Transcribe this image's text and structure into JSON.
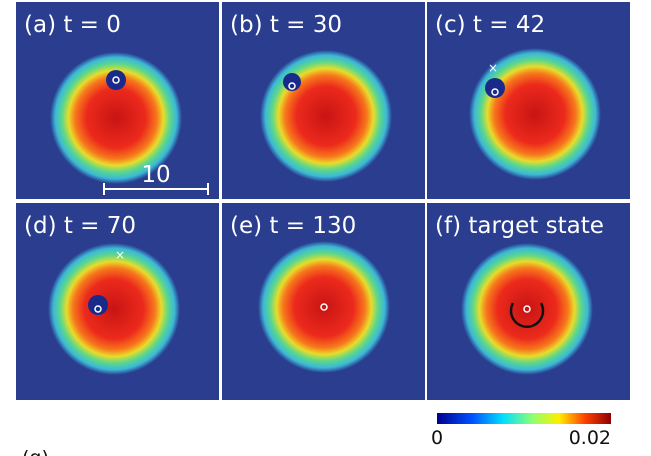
{
  "panels": [
    {
      "label": "(a) t = 0"
    },
    {
      "label": "(b) t = 30"
    },
    {
      "label": "(c) t = 42"
    },
    {
      "label": "(d) t = 70"
    },
    {
      "label": "(e) t = 130"
    },
    {
      "label": "(f) target state"
    }
  ],
  "scale_bar": {
    "label": "10"
  },
  "colorbar": {
    "ticks": [
      0,
      0.02
    ]
  },
  "next_label": "(g)"
}
